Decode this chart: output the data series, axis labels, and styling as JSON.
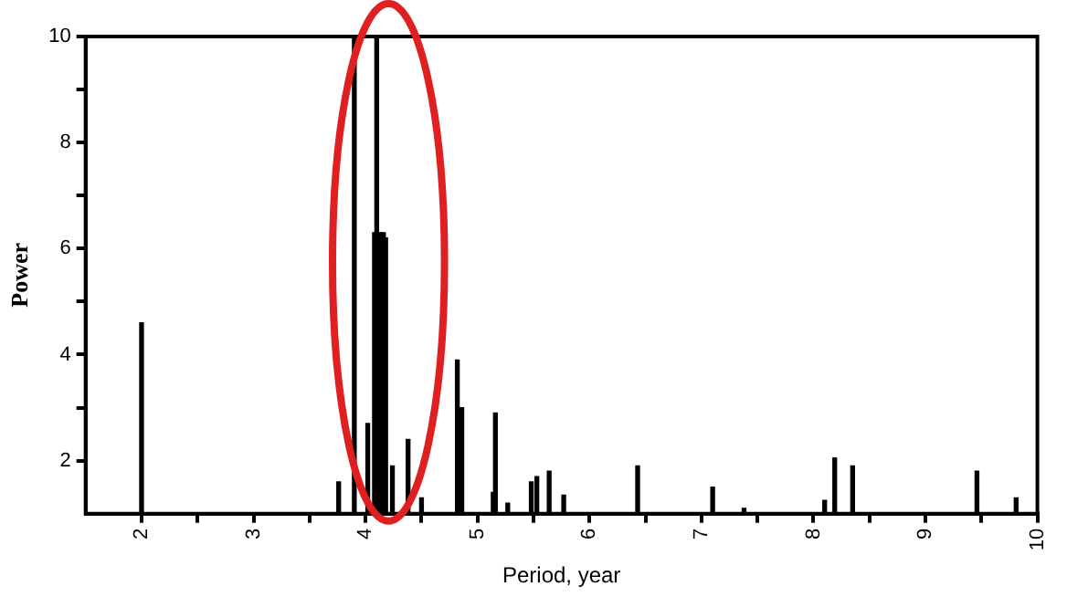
{
  "chart_data": {
    "type": "bar",
    "xlabel": "Period, year",
    "ylabel": "Power",
    "x": [
      2.0,
      3.76,
      3.9,
      4.02,
      4.08,
      4.1,
      4.13,
      4.16,
      4.18,
      4.24,
      4.38,
      4.5,
      4.82,
      4.86,
      5.14,
      5.16,
      5.27,
      5.48,
      5.53,
      5.64,
      5.77,
      6.43,
      7.1,
      7.38,
      8.1,
      8.19,
      8.35,
      9.46,
      9.81
    ],
    "values": [
      4.6,
      1.6,
      10,
      2.7,
      6.3,
      10,
      6.3,
      6.3,
      6.2,
      1.9,
      2.4,
      1.3,
      3.9,
      3.0,
      1.4,
      2.9,
      1.2,
      1.6,
      1.7,
      1.8,
      1.35,
      1.9,
      1.5,
      1.1,
      1.25,
      2.05,
      1.9,
      1.8,
      1.3
    ],
    "color": "#000000",
    "xlim": [
      1.5,
      10
    ],
    "xticks": [
      2,
      {
        "value": 2.5,
        "label": null
      },
      3,
      {
        "value": 3.5,
        "label": null
      },
      4,
      {
        "value": 4.5,
        "label": null
      },
      5,
      {
        "value": 5.5,
        "label": null
      },
      6,
      {
        "value": 6.5,
        "label": null
      },
      7,
      {
        "value": 7.5,
        "label": null
      },
      8,
      {
        "value": 8.5,
        "label": null
      },
      9,
      {
        "value": 9.5,
        "label": null
      },
      10
    ],
    "ylim": [
      1,
      10
    ],
    "yticks": [
      2,
      {
        "value": 3,
        "label": null
      },
      4,
      {
        "value": 5,
        "label": null
      },
      6,
      {
        "value": 7,
        "label": null
      },
      8,
      {
        "value": 9,
        "label": null
      },
      10
    ]
  }
}
